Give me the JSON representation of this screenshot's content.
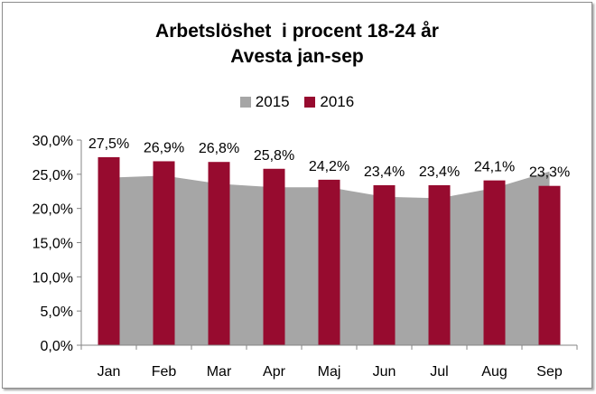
{
  "chart_data": {
    "type": "bar",
    "title_line1": "Arbetslöshet  i procent 18-24 år",
    "title_line2": "Avesta jan-sep",
    "categories": [
      "Jan",
      "Feb",
      "Mar",
      "Apr",
      "Maj",
      "Jun",
      "Jul",
      "Aug",
      "Sep"
    ],
    "series": [
      {
        "name": "2015",
        "type": "area",
        "color": "#a6a6a6",
        "values": [
          24.5,
          24.8,
          23.6,
          23.1,
          23.1,
          21.7,
          21.5,
          23.0,
          25.4
        ]
      },
      {
        "name": "2016",
        "type": "bar",
        "color": "#970b2f",
        "values": [
          27.5,
          26.9,
          26.8,
          25.8,
          24.2,
          23.4,
          23.4,
          24.1,
          23.3
        ],
        "data_labels": [
          "27,5%",
          "26,9%",
          "26,8%",
          "25,8%",
          "24,2%",
          "23,4%",
          "23,4%",
          "24,1%",
          "23,3%"
        ]
      }
    ],
    "y_ticks": [
      "0,0%",
      "5,0%",
      "10,0%",
      "15,0%",
      "20,0%",
      "25,0%",
      "30,0%"
    ],
    "ylim": [
      0,
      30
    ],
    "grid": false,
    "legend_position": "top"
  }
}
